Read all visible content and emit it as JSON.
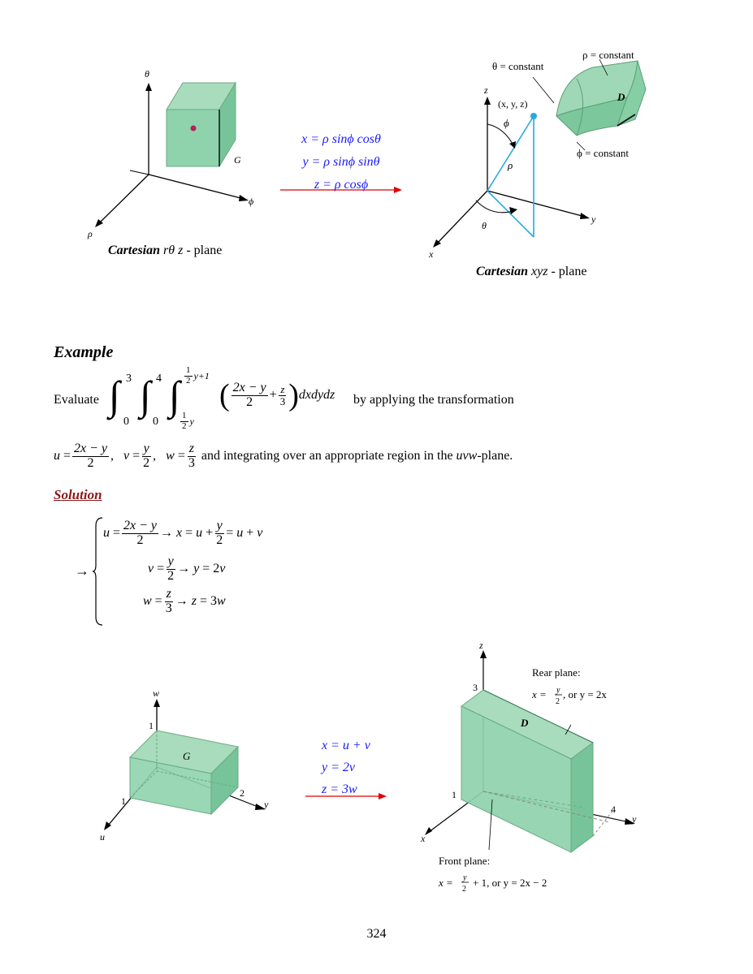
{
  "fig1": {
    "left_axis_theta": "θ",
    "left_axis_phi": "ϕ",
    "left_axis_rho": "ρ",
    "left_box_label": "G",
    "left_caption_bold": "Cartesian",
    "left_caption_rest": "rθ z",
    "left_caption_tail": " - plane",
    "transform_lines": [
      "x = ρ sinϕ cosθ",
      "y = ρ sinϕ sinθ",
      "z = ρ cosϕ"
    ],
    "right_labels": {
      "rho_const": "ρ = constant",
      "theta_const": "θ = constant",
      "phi_const": "ϕ = constant",
      "D": "D",
      "point": "(x, y, z)",
      "z": "z",
      "y": "y",
      "x": "x",
      "phi": "ϕ",
      "rho": "ρ",
      "theta": "θ"
    },
    "right_caption_bold": "Cartesian",
    "right_caption_rest": "xyz",
    "right_caption_tail": " - plane"
  },
  "example": {
    "heading": "Example",
    "evaluate": "Evaluate",
    "integrand_tail": "dxdydz",
    "by_applying": "by applying the transformation",
    "integrating_text": "and integrating over an appropriate region in the",
    "uvw": "uvw",
    "plane": "-plane.",
    "lim_outer_top": "3",
    "lim_outer_bot": "0",
    "lim_mid_top": "4",
    "lim_mid_bot": "0",
    "lim_inner_top": "y+1",
    "lim_inner_bot": "y"
  },
  "solution": {
    "heading": "Solution",
    "arrow": "→"
  },
  "fig2": {
    "left": {
      "w": "w",
      "u": "u",
      "y": "y",
      "one_w": "1",
      "one_u": "1",
      "two": "2",
      "G": "G"
    },
    "transform_lines": [
      "x = u + v",
      "y = 2v",
      "z = 3w"
    ],
    "right": {
      "z": "z",
      "y": "y",
      "x": "x",
      "three": "3",
      "one": "1",
      "four": "4",
      "D": "D",
      "rear_title": "Rear plane:",
      "rear_eq": ", or y = 2x",
      "front_title": "Front plane:",
      "front_eq": "+ 1, or y = 2x − 2"
    }
  },
  "page_number": "324",
  "colors": {
    "accent_blue": "#1a1aff",
    "arrow_red": "#e00000",
    "solution_red": "#8b1a1a",
    "box_green": "#7fcfa3",
    "cyan_line": "#29a9e0"
  }
}
